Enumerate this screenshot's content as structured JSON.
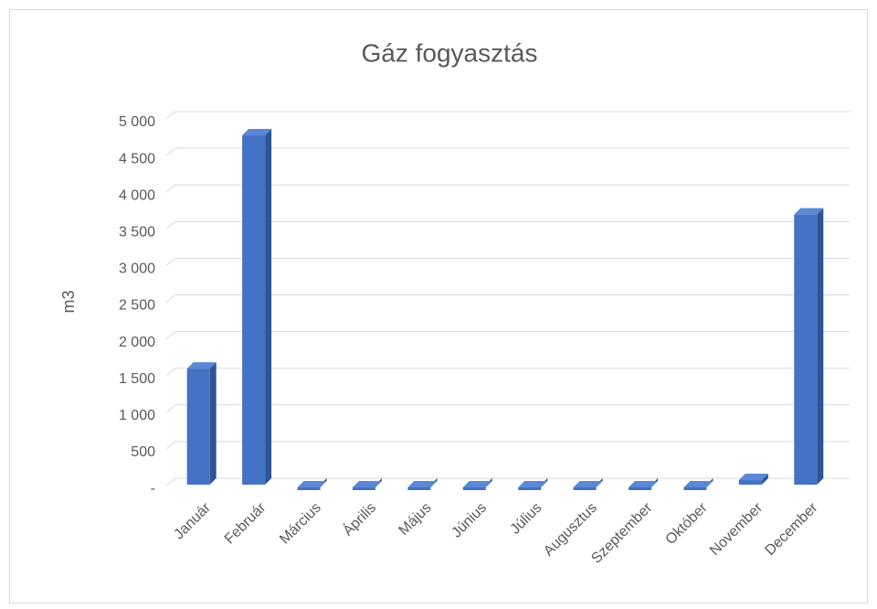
{
  "chart_data": {
    "type": "bar",
    "title": "Gáz fogyasztás",
    "y_label": "m3",
    "categories": [
      "Január",
      "Február",
      "Március",
      "Április",
      "Május",
      "Június",
      "Július",
      "Augusztus",
      "Szeptember",
      "Október",
      "November",
      "December"
    ],
    "values": [
      1620,
      4800,
      0,
      0,
      0,
      0,
      0,
      0,
      0,
      0,
      100,
      3720
    ],
    "color": "#4472c4",
    "ylim": [
      0,
      5000
    ],
    "yticks": [
      {
        "value": 0,
        "label": "-"
      },
      500,
      {
        "value": 1000,
        "label": "1 000"
      },
      {
        "value": 1500,
        "label": "1 500"
      },
      {
        "value": 2000,
        "label": "2 000"
      },
      {
        "value": 2500,
        "label": "2 500"
      },
      {
        "value": 3000,
        "label": "3 000"
      },
      {
        "value": 3500,
        "label": "3 500"
      },
      {
        "value": 4000,
        "label": "4 000"
      },
      {
        "value": 4500,
        "label": "4 500"
      },
      {
        "value": 5000,
        "label": "5 000"
      }
    ],
    "grid": true
  }
}
